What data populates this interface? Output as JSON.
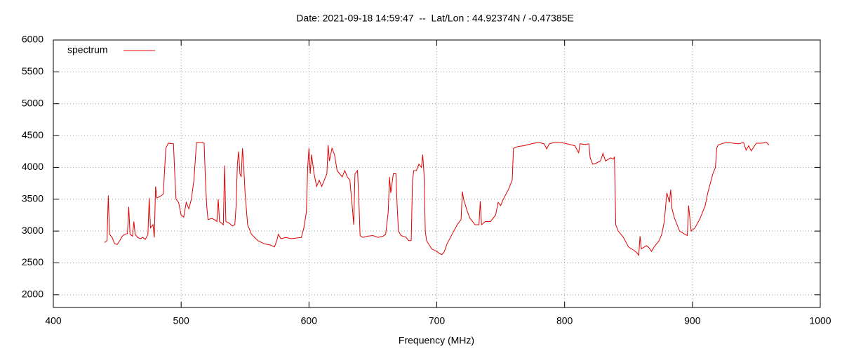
{
  "chart_data": {
    "type": "line",
    "title": "Date: 2021-09-18 14:59:47  --  Lat/Lon : 44.92374N / -0.47385E",
    "xlabel": "Frequency (MHz)",
    "xlim": [
      400,
      1000
    ],
    "xticks": [
      400,
      500,
      600,
      700,
      800,
      900,
      1000
    ],
    "ylim": [
      1800,
      6000
    ],
    "yticks": [
      2000,
      2500,
      3000,
      3500,
      4000,
      4500,
      5000,
      5500,
      6000
    ],
    "grid": true,
    "legend": "top-left",
    "x": [
      440,
      442,
      443,
      444,
      446,
      448,
      450,
      452,
      454,
      456,
      458,
      459,
      460,
      462,
      463,
      464,
      466,
      468,
      470,
      472,
      474,
      475,
      476,
      478,
      479,
      480,
      481,
      484,
      486,
      488,
      490,
      494,
      495,
      496,
      498,
      500,
      502,
      504,
      506,
      508,
      510,
      512,
      516,
      518,
      519,
      520,
      521,
      524,
      526,
      528,
      529,
      530,
      533,
      534,
      535,
      538,
      540,
      542,
      543,
      544,
      545,
      546,
      547,
      548,
      549,
      550,
      552,
      555,
      560,
      565,
      570,
      573,
      575,
      576,
      578,
      582,
      586,
      590,
      594,
      596,
      598,
      599,
      600,
      601,
      602,
      604,
      606,
      608,
      610,
      612,
      614,
      615,
      616,
      618,
      620,
      622,
      624,
      626,
      628,
      630,
      632,
      634,
      635,
      636,
      638,
      639,
      640,
      642,
      646,
      650,
      654,
      658,
      660,
      662,
      663,
      664,
      666,
      668,
      669,
      670,
      672,
      676,
      678,
      680,
      681,
      682,
      684,
      686,
      688,
      689,
      690,
      691,
      692,
      696,
      700,
      702,
      704,
      706,
      708,
      712,
      716,
      719,
      720,
      721,
      724,
      726,
      728,
      730,
      733,
      734,
      735,
      738,
      742,
      744,
      746,
      748,
      750,
      752,
      756,
      759,
      760,
      764,
      768,
      772,
      776,
      780,
      784,
      786,
      788,
      792,
      796,
      800,
      804,
      808,
      811,
      812,
      816,
      819,
      820,
      822,
      824,
      828,
      830,
      832,
      836,
      838,
      839,
      840,
      842,
      846,
      850,
      854,
      856,
      858,
      859,
      860,
      864,
      866,
      868,
      870,
      874,
      876,
      878,
      880,
      882,
      883,
      884,
      886,
      890,
      894,
      896,
      897,
      898,
      899,
      902,
      906,
      910,
      912,
      916,
      918,
      919,
      920,
      924,
      928,
      932,
      936,
      940,
      942,
      944,
      946,
      948,
      950,
      954,
      958,
      960
    ],
    "series": [
      {
        "name": "spectrum",
        "color": "#e00000",
        "values": [
          2820,
          2850,
          3560,
          2950,
          2900,
          2800,
          2790,
          2850,
          2920,
          2950,
          2960,
          3380,
          2950,
          2920,
          3150,
          2950,
          2900,
          2880,
          2900,
          2870,
          2950,
          3520,
          3050,
          3100,
          2900,
          3700,
          3520,
          3550,
          3580,
          4300,
          4380,
          4370,
          3900,
          3500,
          3450,
          3250,
          3220,
          3450,
          3350,
          3500,
          3800,
          4390,
          4390,
          4380,
          3800,
          3400,
          3180,
          3200,
          3180,
          3150,
          3500,
          3150,
          3100,
          4030,
          3150,
          3120,
          3080,
          3100,
          3400,
          4050,
          4250,
          3900,
          3850,
          4300,
          4000,
          3600,
          3100,
          2950,
          2850,
          2800,
          2780,
          2750,
          2860,
          2950,
          2880,
          2900,
          2880,
          2890,
          2900,
          3050,
          3300,
          4000,
          4300,
          3900,
          4200,
          3900,
          3700,
          3800,
          3700,
          3800,
          3900,
          4350,
          4100,
          4300,
          4200,
          3950,
          3900,
          3850,
          3950,
          3850,
          3800,
          3350,
          3100,
          3900,
          3950,
          3500,
          2930,
          2900,
          2920,
          2930,
          2900,
          2920,
          2950,
          3300,
          3850,
          3600,
          3900,
          3900,
          3400,
          3000,
          2930,
          2900,
          2850,
          2850,
          3800,
          3950,
          3950,
          4050,
          4000,
          4200,
          3900,
          3000,
          2850,
          2720,
          2680,
          2650,
          2630,
          2680,
          2800,
          2950,
          3100,
          3180,
          3620,
          3500,
          3300,
          3200,
          3150,
          3100,
          3100,
          3470,
          3100,
          3150,
          3150,
          3200,
          3250,
          3450,
          3400,
          3500,
          3650,
          3800,
          4300,
          4330,
          4340,
          4360,
          4380,
          4390,
          4370,
          4290,
          4370,
          4390,
          4390,
          4380,
          4360,
          4340,
          4230,
          4370,
          4360,
          4370,
          4150,
          4050,
          4060,
          4100,
          4220,
          4100,
          4150,
          4130,
          4160,
          3100,
          3000,
          2900,
          2750,
          2700,
          2670,
          2620,
          2920,
          2720,
          2770,
          2740,
          2680,
          2750,
          2850,
          2950,
          3150,
          3600,
          3450,
          3650,
          3350,
          3200,
          3000,
          2950,
          2930,
          3400,
          3200,
          3000,
          3050,
          3200,
          3400,
          3600,
          3900,
          4000,
          4300,
          4350,
          4380,
          4390,
          4380,
          4370,
          4390,
          4270,
          4340,
          4260,
          4320,
          4380,
          4380,
          4390,
          4350
        ]
      }
    ]
  }
}
